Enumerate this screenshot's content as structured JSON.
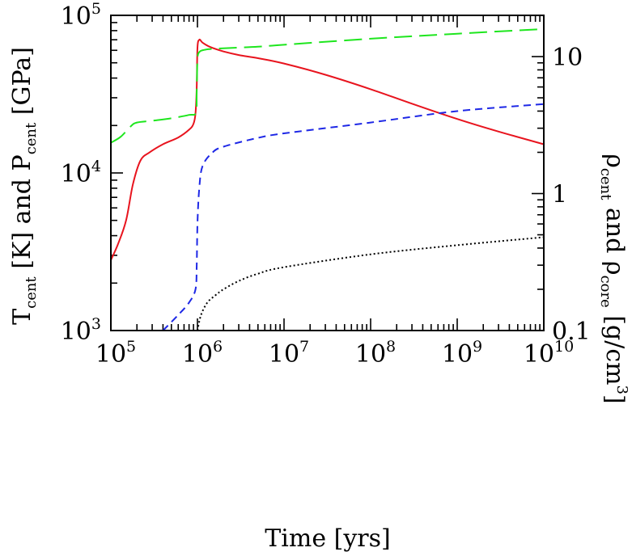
{
  "chart_data": {
    "type": "line",
    "title": "",
    "xlabel": "Time [yrs]",
    "xlabel_left": "Time [yrs]",
    "ylabel_left": "T_cent [K] and P_cent [GPa]",
    "ylabel_right": "ρ_cent and ρ_core [g/cm³]",
    "x_scale": "log",
    "y_scale": "log",
    "y2_scale": "log",
    "xlim": [
      100000,
      10000000000
    ],
    "ylim": [
      1000,
      100000
    ],
    "y2lim": [
      0.1,
      20
    ],
    "grid": false,
    "legend": "none",
    "x_tick_labels": [
      {
        "base": "10",
        "exp": "5"
      },
      {
        "base": "10",
        "exp": "6"
      },
      {
        "base": "10",
        "exp": "7"
      },
      {
        "base": "10",
        "exp": "8"
      },
      {
        "base": "10",
        "exp": "9"
      },
      {
        "base": "10",
        "exp": "10"
      }
    ],
    "y_tick_labels": [
      {
        "base": "10",
        "exp": "3"
      },
      {
        "base": "10",
        "exp": "4"
      },
      {
        "base": "10",
        "exp": "5"
      }
    ],
    "y2_tick_labels": [
      "0.1",
      "1",
      "10"
    ],
    "series": [
      {
        "color": "#e8141e",
        "dash": "solid",
        "axis": "left",
        "x": [
          100000,
          120000,
          150000,
          180000,
          220000,
          280000,
          400000,
          600000,
          800000,
          900000,
          950000,
          980000,
          1000000,
          1050000,
          1150000,
          1400000,
          2000000,
          3000000,
          5000000,
          10000000,
          30000000,
          100000000,
          300000000,
          1000000000,
          3000000000,
          10000000000
        ],
        "y": [
          2800,
          3500,
          5000,
          8500,
          12000,
          13500,
          15200,
          16800,
          18800,
          20500,
          24000,
          35000,
          62000,
          70000,
          67000,
          63000,
          59000,
          56000,
          53500,
          49500,
          42000,
          34000,
          27500,
          22000,
          18300,
          15200
        ]
      },
      {
        "color": "#1ee61e",
        "dash": "long-dash",
        "axis": "right",
        "x": [
          100000,
          130000,
          170000,
          200000,
          300000,
          500000,
          800000,
          960000,
          980000,
          1000000,
          1050000,
          1200000,
          1500000,
          2000000,
          5000000,
          10000000,
          100000000,
          1000000000,
          10000000000
        ],
        "y": [
          2.35,
          2.6,
          3.1,
          3.3,
          3.4,
          3.55,
          3.75,
          3.9,
          5.5,
          9.5,
          10.8,
          11.2,
          11.4,
          11.5,
          11.8,
          12.2,
          13.5,
          14.7,
          15.9
        ]
      },
      {
        "color": "#1e28e6",
        "dash": "short-dash",
        "axis": "right",
        "x": [
          400000,
          600000,
          800000,
          950000,
          980000,
          1000000,
          1050000,
          1150000,
          1500000,
          2000000,
          5000000,
          10000000,
          100000000,
          1000000000,
          10000000000
        ],
        "y": [
          0.1,
          0.13,
          0.16,
          0.2,
          0.3,
          0.6,
          1.1,
          1.6,
          2.0,
          2.2,
          2.55,
          2.75,
          3.3,
          4.0,
          4.5
        ]
      },
      {
        "color": "#000000",
        "dash": "dotted",
        "axis": "right",
        "x": [
          1000000,
          1100000,
          1300000,
          1600000,
          2000000,
          3000000,
          5000000,
          10000000,
          100000000,
          1000000000,
          10000000000
        ],
        "y": [
          0.1,
          0.13,
          0.16,
          0.18,
          0.2,
          0.23,
          0.26,
          0.29,
          0.36,
          0.42,
          0.48
        ]
      }
    ]
  }
}
